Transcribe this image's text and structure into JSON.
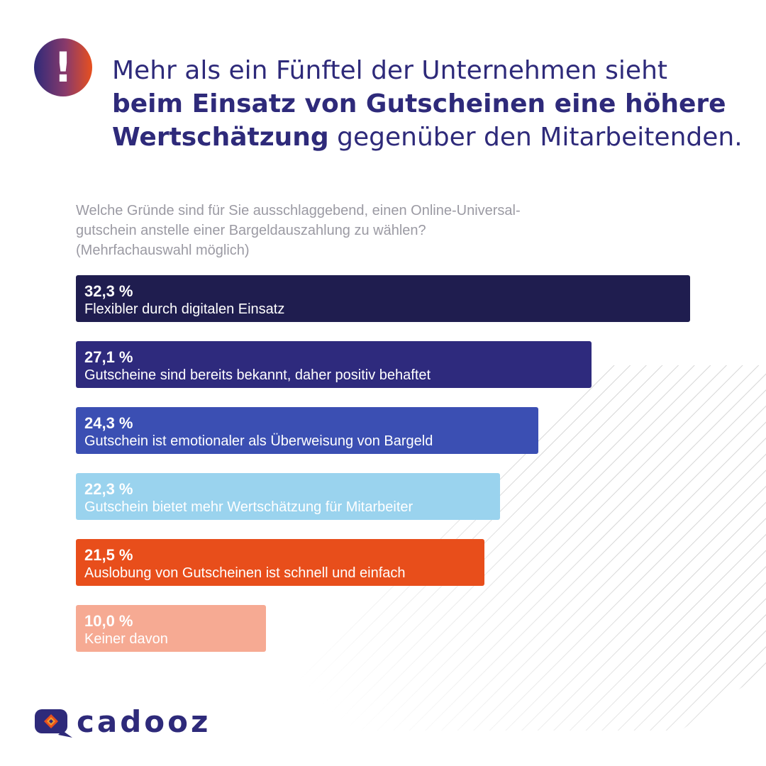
{
  "header": {
    "alert_icon": "exclamation-icon",
    "alert_symbol": "!",
    "headline_line1": "Mehr als ein Fünftel der Unternehmen sieht",
    "headline_line2": "beim Einsatz von Gutscheinen eine höhere",
    "headline_line3_bold": "Wertschätzung",
    "headline_line3_rest": " gegenüber den Mitarbeitenden."
  },
  "question": {
    "line1": "Welche Gründe sind für Sie ausschlaggebend, einen Online-Universal-",
    "line2": "gutschein anstelle einer Bargeldauszahlung zu wählen?",
    "line3": "(Mehrfachauswahl möglich)"
  },
  "chart_data": {
    "type": "bar",
    "orientation": "horizontal",
    "categories": [
      "Flexibler durch digitalen Einsatz",
      "Gutscheine sind bereits bekannt, daher positiv behaftet",
      "Gutschein ist emotionaler als Überweisung von Bargeld",
      "Gutschein bietet mehr Wertschätzung für Mitarbeiter",
      "Auslobung von Gutscheinen ist schnell und einfach",
      "Keiner davon"
    ],
    "values": [
      32.3,
      27.1,
      24.3,
      22.3,
      21.5,
      10.0
    ],
    "value_labels": [
      "32,3 %",
      "27,1 %",
      "24,3 %",
      "22,3 %",
      "21,5 %",
      "10,0 %"
    ],
    "colors": [
      "#1f1d4f",
      "#2e2a7d",
      "#3b4fb3",
      "#9ad3ee",
      "#e84e1b",
      "#f6aa93"
    ],
    "xlim": [
      0,
      32.3
    ],
    "grid": false
  },
  "brand": {
    "name": "cadooz",
    "logo_icon": "cadooz-logo-icon",
    "primary_color": "#2e2a7a",
    "accent_color": "#e8501e"
  }
}
